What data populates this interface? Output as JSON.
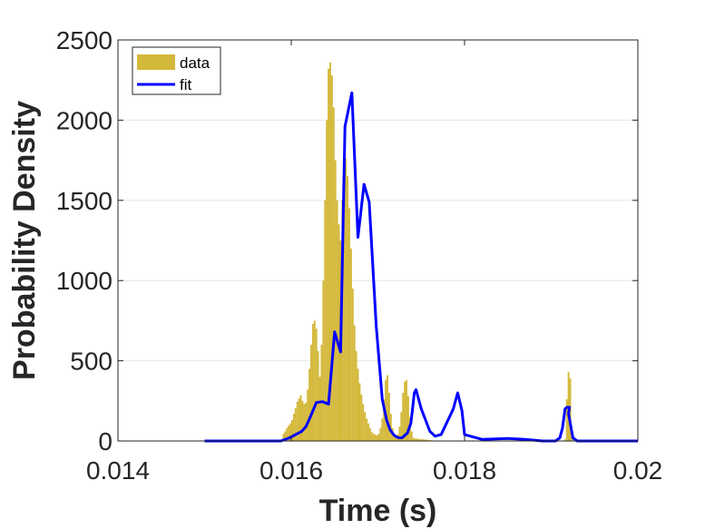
{
  "chart_data": {
    "type": "bar",
    "xlabel": "Time (s)",
    "ylabel": "Probability Density",
    "xlim": [
      0.014,
      0.02
    ],
    "ylim": [
      0,
      2500
    ],
    "x_ticks": [
      "0.014",
      "0.016",
      "0.018",
      "0.02"
    ],
    "x_tick_values": [
      0.014,
      0.016,
      0.018,
      0.02
    ],
    "y_ticks": [
      "0",
      "500",
      "1000",
      "1500",
      "2000",
      "2500"
    ],
    "y_tick_values": [
      0,
      500,
      1000,
      1500,
      2000,
      2500
    ],
    "grid": "y-major",
    "legend_position": "top-left",
    "colors": {
      "data": "#d4b83a",
      "fit": "#0000ff",
      "axis": "#262626",
      "grid": "#e6e6e6"
    },
    "series": [
      {
        "name": "data",
        "type": "histogram",
        "bin_width": 2e-05,
        "x": [
          0.0159,
          0.01592,
          0.01594,
          0.01596,
          0.01598,
          0.016,
          0.01602,
          0.01604,
          0.01606,
          0.01608,
          0.0161,
          0.01612,
          0.01614,
          0.01616,
          0.01618,
          0.0162,
          0.01622,
          0.01624,
          0.01626,
          0.01628,
          0.0163,
          0.01632,
          0.01634,
          0.01636,
          0.01638,
          0.0164,
          0.01642,
          0.01644,
          0.01646,
          0.01648,
          0.0165,
          0.01652,
          0.01654,
          0.01656,
          0.01658,
          0.0166,
          0.01662,
          0.01664,
          0.01666,
          0.01668,
          0.0167,
          0.01672,
          0.01674,
          0.01676,
          0.01678,
          0.0168,
          0.01682,
          0.01684,
          0.01686,
          0.01688,
          0.0169,
          0.01692,
          0.01694,
          0.01696,
          0.01698,
          0.017,
          0.01702,
          0.01704,
          0.01706,
          0.01708,
          0.0171,
          0.01712,
          0.01714,
          0.01716,
          0.01718,
          0.0172,
          0.01722,
          0.01724,
          0.01726,
          0.01728,
          0.0173,
          0.01732,
          0.01734,
          0.01736,
          0.01738,
          0.0174,
          0.01742,
          0.01744,
          0.01746,
          0.01748,
          0.0175,
          0.01752,
          0.01754,
          0.01756,
          0.01758,
          0.0176,
          0.01762,
          0.01764,
          0.01766,
          0.01768,
          0.0177,
          0.01772,
          0.01774,
          0.01776,
          0.01778,
          0.0178,
          0.01782,
          0.0179,
          0.01792,
          0.01794,
          0.01796,
          0.01798,
          0.018,
          0.018075,
          0.01915,
          0.01917,
          0.01919,
          0.01921,
          0.01923
        ],
        "values": [
          45,
          60,
          80,
          95,
          110,
          130,
          170,
          205,
          245,
          265,
          285,
          250,
          230,
          240,
          320,
          450,
          600,
          730,
          750,
          700,
          560,
          400,
          600,
          1000,
          1500,
          2000,
          2320,
          2360,
          2280,
          2080,
          1750,
          1500,
          1350,
          1250,
          1500,
          1700,
          1760,
          1650,
          1450,
          1200,
          950,
          720,
          560,
          450,
          360,
          290,
          230,
          180,
          140,
          110,
          80,
          55,
          45,
          40,
          35,
          45,
          80,
          140,
          260,
          380,
          410,
          300,
          170,
          80,
          35,
          20,
          40,
          90,
          180,
          300,
          370,
          380,
          280,
          150,
          60,
          20,
          15,
          15,
          12,
          12,
          10,
          10,
          8,
          8,
          5,
          5,
          3,
          3,
          2,
          2,
          2,
          2,
          2,
          2,
          2,
          2,
          2,
          2,
          2,
          2,
          2,
          2,
          2,
          2,
          10,
          260,
          430,
          390,
          30
        ]
      },
      {
        "name": "fit",
        "type": "line",
        "x": [
          0.015,
          0.0154,
          0.0157,
          0.0158,
          0.01588,
          0.01598,
          0.01605,
          0.01612,
          0.01617,
          0.01622,
          0.01629,
          0.01636,
          0.01643,
          0.0165,
          0.01657,
          0.01662,
          0.0167,
          0.01677,
          0.01684,
          0.0169,
          0.01698,
          0.01705,
          0.0171,
          0.01714,
          0.01718,
          0.0172,
          0.01724,
          0.01728,
          0.01732,
          0.01734,
          0.01738,
          0.0174,
          0.01742,
          0.01744,
          0.0175,
          0.0176,
          0.01766,
          0.01773,
          0.0178,
          0.01787,
          0.01792,
          0.01797,
          0.018,
          0.0182,
          0.0185,
          0.0187,
          0.0189,
          0.01902,
          0.01905,
          0.0191,
          0.01913,
          0.01916,
          0.01918,
          0.01921,
          0.0192,
          0.01925,
          0.0193,
          0.01955,
          0.0198,
          0.02
        ],
        "values": [
          0,
          0,
          0,
          0,
          0,
          20,
          40,
          60,
          90,
          150,
          240,
          245,
          230,
          680,
          555,
          1960,
          2170,
          1270,
          1600,
          1490,
          720,
          260,
          130,
          70,
          40,
          30,
          20,
          20,
          40,
          50,
          110,
          200,
          300,
          320,
          200,
          60,
          30,
          40,
          120,
          200,
          300,
          190,
          40,
          10,
          15,
          10,
          0,
          0,
          0,
          20,
          80,
          200,
          210,
          210,
          170,
          20,
          0,
          0,
          0,
          0
        ]
      }
    ]
  }
}
